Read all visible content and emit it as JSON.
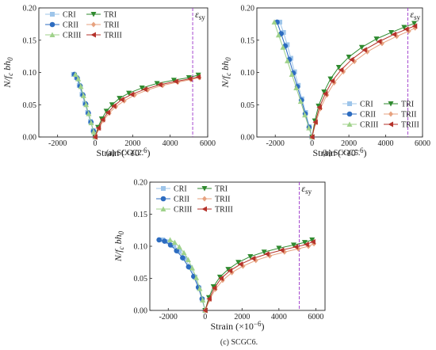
{
  "figure": {
    "ylabel": "N/f_c bh_0",
    "xlabel": "Strain (×10^-6)",
    "eps_label": "εsy",
    "colors": {
      "CRI": "#9ec5ea",
      "CRII": "#2d6cc0",
      "CRIII": "#9fd28a",
      "TRI": "#2f8a2f",
      "TRII": "#e7a27f",
      "TRIII": "#b5322a",
      "eps": "#9b34c9"
    }
  },
  "chart_data": [
    {
      "id": "a",
      "type": "line",
      "caption": "(a) SCGC2.",
      "xlim": [
        -3000,
        6000
      ],
      "ylim": [
        0,
        0.2
      ],
      "xticks": [
        -2000,
        0,
        2000,
        4000,
        6000
      ],
      "yticks": [
        0.0,
        0.05,
        0.1,
        0.15,
        0.2
      ],
      "eps_sy": 5200,
      "legend": "top-left",
      "series": [
        {
          "name": "CRI",
          "marker": "square",
          "x": [
            -1150,
            -1000,
            -850,
            -700,
            -550,
            -400,
            -250,
            -100,
            0
          ],
          "y": [
            0.097,
            0.092,
            0.08,
            0.066,
            0.052,
            0.038,
            0.024,
            0.01,
            0
          ]
        },
        {
          "name": "CRII",
          "marker": "circle",
          "x": [
            -1100,
            -950,
            -800,
            -650,
            -500,
            -360,
            -220,
            -90,
            0
          ],
          "y": [
            0.097,
            0.091,
            0.079,
            0.065,
            0.051,
            0.037,
            0.023,
            0.009,
            0
          ]
        },
        {
          "name": "CRIII",
          "marker": "triangle-up",
          "x": [
            -1050,
            -900,
            -760,
            -620,
            -480,
            -340,
            -210,
            -80,
            0
          ],
          "y": [
            0.097,
            0.09,
            0.078,
            0.064,
            0.05,
            0.036,
            0.022,
            0.008,
            0
          ]
        },
        {
          "name": "TRI",
          "marker": "triangle-down",
          "x": [
            0,
            150,
            350,
            600,
            900,
            1300,
            1800,
            2500,
            3300,
            4200,
            5000,
            5500
          ],
          "y": [
            0,
            0.015,
            0.028,
            0.04,
            0.05,
            0.06,
            0.068,
            0.076,
            0.083,
            0.088,
            0.092,
            0.096
          ]
        },
        {
          "name": "TRII",
          "marker": "diamond",
          "x": [
            0,
            200,
            450,
            750,
            1100,
            1550,
            2100,
            2800,
            3600,
            4400,
            5100,
            5550
          ],
          "y": [
            0,
            0.013,
            0.026,
            0.037,
            0.047,
            0.056,
            0.065,
            0.073,
            0.08,
            0.085,
            0.089,
            0.092
          ]
        },
        {
          "name": "TRIII",
          "marker": "triangle-left",
          "x": [
            0,
            180,
            400,
            680,
            1000,
            1420,
            1950,
            2650,
            3450,
            4300,
            5050,
            5500
          ],
          "y": [
            0,
            0.014,
            0.027,
            0.038,
            0.048,
            0.058,
            0.066,
            0.074,
            0.081,
            0.086,
            0.09,
            0.093
          ]
        }
      ]
    },
    {
      "id": "b",
      "type": "line",
      "caption": "(b) SCGC5.",
      "xlim": [
        -3000,
        6000
      ],
      "ylim": [
        0,
        0.2
      ],
      "xticks": [
        -2000,
        0,
        2000,
        4000,
        6000
      ],
      "yticks": [
        0.0,
        0.05,
        0.1,
        0.15,
        0.2
      ],
      "eps_sy": 5200,
      "legend": "bottom-right",
      "series": [
        {
          "name": "CRI",
          "marker": "square",
          "x": [
            -1750,
            -1550,
            -1350,
            -1150,
            -950,
            -750,
            -550,
            -350,
            -150,
            0
          ],
          "y": [
            0.178,
            0.162,
            0.143,
            0.122,
            0.101,
            0.08,
            0.059,
            0.038,
            0.016,
            0
          ]
        },
        {
          "name": "CRII",
          "marker": "circle",
          "x": [
            -1900,
            -1680,
            -1460,
            -1240,
            -1020,
            -800,
            -580,
            -370,
            -160,
            0
          ],
          "y": [
            0.178,
            0.16,
            0.141,
            0.12,
            0.099,
            0.078,
            0.057,
            0.036,
            0.015,
            0
          ]
        },
        {
          "name": "CRIII",
          "marker": "triangle-up",
          "x": [
            -2050,
            -1820,
            -1580,
            -1340,
            -1100,
            -860,
            -620,
            -390,
            -170,
            0
          ],
          "y": [
            0.178,
            0.158,
            0.139,
            0.118,
            0.097,
            0.076,
            0.055,
            0.034,
            0.014,
            0
          ]
        },
        {
          "name": "TRI",
          "marker": "triangle-down",
          "x": [
            0,
            150,
            350,
            650,
            1000,
            1450,
            2000,
            2700,
            3500,
            4300,
            5000,
            5550
          ],
          "y": [
            0,
            0.025,
            0.048,
            0.07,
            0.09,
            0.108,
            0.124,
            0.139,
            0.152,
            0.162,
            0.17,
            0.176
          ]
        },
        {
          "name": "TRII",
          "marker": "diamond",
          "x": [
            0,
            200,
            450,
            800,
            1200,
            1700,
            2300,
            3000,
            3800,
            4600,
            5250,
            5600
          ],
          "y": [
            0,
            0.022,
            0.044,
            0.065,
            0.084,
            0.101,
            0.117,
            0.132,
            0.145,
            0.156,
            0.164,
            0.169
          ]
        },
        {
          "name": "TRIII",
          "marker": "triangle-left",
          "x": [
            0,
            180,
            400,
            720,
            1100,
            1580,
            2150,
            2850,
            3650,
            4450,
            5120,
            5580
          ],
          "y": [
            0,
            0.023,
            0.046,
            0.067,
            0.087,
            0.104,
            0.12,
            0.135,
            0.148,
            0.159,
            0.167,
            0.172
          ]
        }
      ]
    },
    {
      "id": "c",
      "type": "line",
      "caption": "(c) SCGC6.",
      "xlim": [
        -3000,
        6500
      ],
      "ylim": [
        0,
        0.2
      ],
      "xticks": [
        -2000,
        0,
        2000,
        4000,
        6000
      ],
      "yticks": [
        0.0,
        0.05,
        0.1,
        0.15,
        0.2
      ],
      "eps_sy": 5100,
      "legend": "top-left",
      "series": [
        {
          "name": "CRI",
          "marker": "square",
          "x": [
            -2300,
            -2000,
            -1700,
            -1400,
            -1100,
            -800,
            -550,
            -330,
            -150,
            0
          ],
          "y": [
            0.11,
            0.107,
            0.101,
            0.092,
            0.081,
            0.067,
            0.052,
            0.035,
            0.017,
            0
          ]
        },
        {
          "name": "CRII",
          "marker": "circle",
          "x": [
            -2500,
            -2200,
            -1880,
            -1550,
            -1220,
            -900,
            -620,
            -370,
            -170,
            0
          ],
          "y": [
            0.11,
            0.108,
            0.102,
            0.093,
            0.082,
            0.068,
            0.053,
            0.036,
            0.018,
            0
          ]
        },
        {
          "name": "CRIII",
          "marker": "triangle-up",
          "x": [
            -1900,
            -1650,
            -1400,
            -1150,
            -920,
            -700,
            -480,
            -290,
            -130,
            0
          ],
          "y": [
            0.11,
            0.106,
            0.099,
            0.09,
            0.079,
            0.066,
            0.051,
            0.034,
            0.016,
            0
          ]
        },
        {
          "name": "TRI",
          "marker": "triangle-down",
          "x": [
            0,
            200,
            450,
            800,
            1250,
            1800,
            2450,
            3200,
            4000,
            4800,
            5400,
            5800
          ],
          "y": [
            0,
            0.02,
            0.037,
            0.052,
            0.064,
            0.075,
            0.084,
            0.091,
            0.097,
            0.102,
            0.106,
            0.11
          ]
        },
        {
          "name": "TRII",
          "marker": "diamond",
          "x": [
            0,
            250,
            550,
            950,
            1450,
            2050,
            2750,
            3500,
            4300,
            5050,
            5600,
            5900
          ],
          "y": [
            0,
            0.017,
            0.033,
            0.047,
            0.059,
            0.069,
            0.078,
            0.085,
            0.091,
            0.096,
            0.1,
            0.104
          ]
        },
        {
          "name": "TRIII",
          "marker": "triangle-left",
          "x": [
            0,
            220,
            500,
            870,
            1350,
            1920,
            2600,
            3350,
            4150,
            4920,
            5500,
            5850
          ],
          "y": [
            0,
            0.018,
            0.035,
            0.05,
            0.062,
            0.072,
            0.081,
            0.088,
            0.094,
            0.099,
            0.103,
            0.107
          ]
        }
      ]
    }
  ]
}
